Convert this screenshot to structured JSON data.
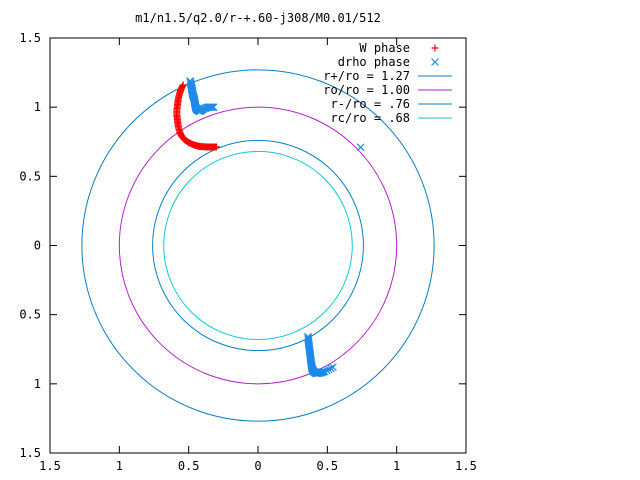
{
  "chart_data": {
    "type": "scatter",
    "title": "m1/n1.5/q2.0/r-+.60-j308/M0.01/512",
    "xlabel": "",
    "ylabel": "",
    "xlim": [
      -1.5,
      1.5
    ],
    "ylim": [
      -1.5,
      1.5
    ],
    "x_tick_values": [
      -1.5,
      -1,
      -0.5,
      0,
      0.5,
      1,
      1.5
    ],
    "x_tick_labels": [
      "1.5",
      "1",
      "0.5",
      "0",
      "0.5",
      "1",
      "1.5"
    ],
    "y_tick_values": [
      1.5,
      1,
      0.5,
      0,
      -0.5,
      -1,
      -1.5
    ],
    "y_tick_labels": [
      "1.5",
      "1",
      "0.5",
      "0",
      "0.5",
      "1",
      "1.5"
    ],
    "grid": false,
    "legend_position": "top-right",
    "circles": [
      {
        "label": "r+/ro = 1.27",
        "radius": 1.27,
        "color": "#0c7fbf"
      },
      {
        "label": "ro/ro = 1.00",
        "radius": 1.0,
        "color": "#b020c8"
      },
      {
        "label": "r-/ro = .76",
        "radius": 0.76,
        "color": "#0c7fbf"
      },
      {
        "label": "rc/ro = .68",
        "radius": 0.68,
        "color": "#10c8d0"
      }
    ],
    "series": [
      {
        "name": "W phase",
        "marker": "+",
        "color": "#ff0000",
        "points": [
          [
            -0.54,
            1.16
          ],
          [
            -0.555,
            1.13
          ],
          [
            -0.565,
            1.1
          ],
          [
            -0.575,
            1.06
          ],
          [
            -0.58,
            1.02
          ],
          [
            -0.585,
            0.98
          ],
          [
            -0.585,
            0.94
          ],
          [
            -0.58,
            0.9
          ],
          [
            -0.575,
            0.86
          ],
          [
            -0.565,
            0.82
          ],
          [
            -0.55,
            0.79
          ],
          [
            -0.53,
            0.765
          ],
          [
            -0.5,
            0.745
          ],
          [
            -0.47,
            0.73
          ],
          [
            -0.44,
            0.72
          ],
          [
            -0.41,
            0.715
          ],
          [
            -0.38,
            0.713
          ],
          [
            -0.35,
            0.712
          ],
          [
            -0.32,
            0.712
          ],
          [
            -0.3,
            0.712
          ]
        ]
      },
      {
        "name": "drho phase",
        "marker": "x",
        "color": "#1e8ae8",
        "points": [
          [
            -0.49,
            1.19
          ],
          [
            -0.48,
            1.15
          ],
          [
            -0.475,
            1.12
          ],
          [
            -0.47,
            1.09
          ],
          [
            -0.46,
            1.06
          ],
          [
            -0.455,
            1.03
          ],
          [
            -0.45,
            1.0
          ],
          [
            -0.44,
            0.98
          ],
          [
            -0.42,
            0.97
          ],
          [
            -0.4,
            0.985
          ],
          [
            -0.36,
            1.0
          ],
          [
            -0.32,
            1.0
          ],
          [
            0.74,
            0.71
          ],
          [
            0.36,
            -0.66
          ],
          [
            0.365,
            -0.7
          ],
          [
            0.37,
            -0.74
          ],
          [
            0.375,
            -0.78
          ],
          [
            0.38,
            -0.82
          ],
          [
            0.385,
            -0.86
          ],
          [
            0.39,
            -0.89
          ],
          [
            0.4,
            -0.91
          ],
          [
            0.42,
            -0.925
          ],
          [
            0.45,
            -0.92
          ],
          [
            0.48,
            -0.91
          ],
          [
            0.54,
            -0.88
          ]
        ]
      }
    ]
  }
}
